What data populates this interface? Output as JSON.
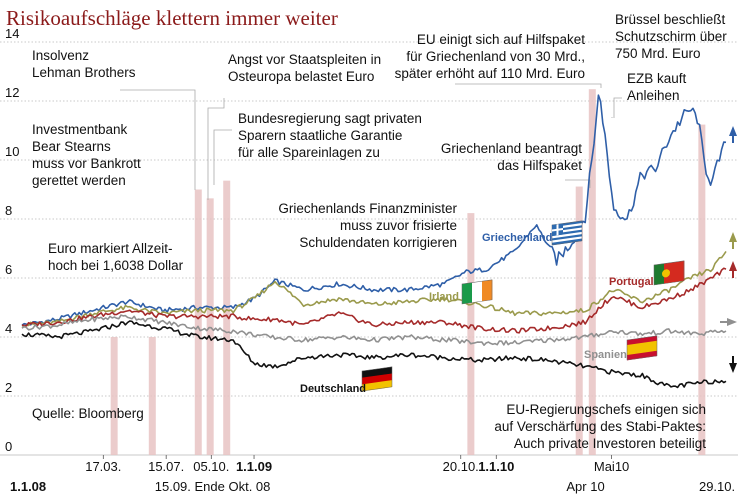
{
  "chart_data": {
    "type": "line",
    "title": "Risikoaufschläge klettern immer weiter",
    "source": "Quelle: Bloomberg",
    "ylim": [
      0,
      14
    ],
    "yticks": [
      0,
      2,
      4,
      6,
      8,
      10,
      12,
      14
    ],
    "grid": true,
    "x_ticks": [
      {
        "label": "17.03.",
        "t": 0.1155,
        "row": 1,
        "bold": false
      },
      {
        "label": "15.07.",
        "t": 0.2048,
        "row": 1,
        "bold": false
      },
      {
        "label": "05.10.",
        "t": 0.2689,
        "row": 1,
        "bold": false
      },
      {
        "label": "1.1.09",
        "t": 0.3296,
        "row": 1,
        "bold": true
      },
      {
        "label": "20.10.",
        "t": 0.6232,
        "row": 1,
        "bold": false
      },
      {
        "label": "1.1.10",
        "t": 0.6737,
        "row": 1,
        "bold": true
      },
      {
        "label": "Mai10",
        "t": 0.8375,
        "row": 1,
        "bold": false
      },
      {
        "label": "1.1.08",
        "t": 0.0,
        "row": 2,
        "bold": true
      },
      {
        "label": "15.09. Ende Okt. 08",
        "t": 0.2707,
        "row": 2,
        "bold": false
      },
      {
        "label": "Apr 10",
        "t": 0.8005,
        "row": 2,
        "bold": false
      },
      {
        "label": "29.10.",
        "t": 0.9873,
        "row": 2,
        "bold": false
      }
    ],
    "event_bands": [
      {
        "t": 0.1309,
        "y": 4.0
      },
      {
        "t": 0.1851,
        "y": 4.0
      },
      {
        "t": 0.2504,
        "y": 9.0
      },
      {
        "t": 0.2673,
        "y": 8.7
      },
      {
        "t": 0.2908,
        "y": 9.3
      },
      {
        "t": 0.6376,
        "y": 8.2
      },
      {
        "t": 0.7915,
        "y": 9.1
      },
      {
        "t": 0.8101,
        "y": 12.4
      },
      {
        "t": 0.9657,
        "y": 11.2
      }
    ],
    "annotations": [
      {
        "lines": [
          "Insolvenz",
          "Lehman Brothers"
        ]
      },
      {
        "lines": [
          "Angst vor Staatspleiten in",
          "Osteuropa belastet Euro"
        ]
      },
      {
        "lines": [
          "EU einigt sich auf Hilfspaket",
          "für Griechenland von 30 Mrd.,",
          "später erhöht auf 110 Mrd. Euro"
        ]
      },
      {
        "lines": [
          "Brüssel beschließt",
          "Schutzschirm über",
          "750 Mrd. Euro"
        ]
      },
      {
        "lines": [
          "EZB kauft",
          "Anleihen"
        ]
      },
      {
        "lines": [
          "Investmentbank",
          "Bear Stearns",
          "muss vor Bankrott",
          "gerettet werden"
        ]
      },
      {
        "lines": [
          "Bundesregierung sagt privaten",
          "Sparern staatliche Garantie",
          "für alle Spareinlagen zu"
        ]
      },
      {
        "lines": [
          "Griechenland beantragt",
          "das Hilfspaket"
        ]
      },
      {
        "lines": [
          "Griechenlands Finanzminister",
          "muss zuvor frisierte",
          "Schuldendaten korrigieren"
        ]
      },
      {
        "lines": [
          "Euro markiert Allzeit-",
          "hoch bei 1,6038 Dollar"
        ]
      },
      {
        "lines": [
          "EU-Regierungschefs einigen sich",
          "auf Verschärfung des Stabi-Paktes:",
          "Auch private Investoren beteiligt"
        ]
      }
    ],
    "series": [
      {
        "name": "Griechenland",
        "color": "#2f5fa8",
        "end_arrow": "up",
        "x": [
          0,
          0.05,
          0.1,
          0.15,
          0.2,
          0.25,
          0.3,
          0.33,
          0.36,
          0.4,
          0.45,
          0.5,
          0.55,
          0.6,
          0.63,
          0.66,
          0.7,
          0.73,
          0.76,
          0.78,
          0.8,
          0.81,
          0.82,
          0.84,
          0.86,
          0.88,
          0.9,
          0.92,
          0.94,
          0.95,
          0.96,
          0.97,
          0.98,
          0.99,
          1.0
        ],
        "values": [
          4.4,
          4.6,
          4.9,
          5.2,
          4.9,
          5.0,
          5.0,
          5.3,
          5.9,
          5.6,
          5.8,
          5.6,
          5.6,
          5.8,
          6.2,
          6.3,
          6.9,
          7.8,
          6.6,
          7.2,
          8.1,
          10.1,
          12.4,
          8.4,
          8.0,
          9.5,
          9.7,
          10.8,
          11.5,
          11.7,
          11.4,
          9.8,
          9.2,
          10.0,
          10.6
        ]
      },
      {
        "name": "Irland",
        "color": "#9a9a4c",
        "end_arrow": "up",
        "x": [
          0,
          0.05,
          0.1,
          0.15,
          0.2,
          0.25,
          0.3,
          0.33,
          0.36,
          0.4,
          0.45,
          0.5,
          0.55,
          0.6,
          0.65,
          0.7,
          0.75,
          0.8,
          0.84,
          0.88,
          0.92,
          0.95,
          0.98,
          1.0
        ],
        "values": [
          4.4,
          4.5,
          4.8,
          5.0,
          4.8,
          4.9,
          4.9,
          5.3,
          5.9,
          5.1,
          5.3,
          5.1,
          5.2,
          5.3,
          5.1,
          4.8,
          4.8,
          4.9,
          5.6,
          5.2,
          5.6,
          6.0,
          6.3,
          6.9
        ]
      },
      {
        "name": "Portugal",
        "color": "#a52a2a",
        "end_arrow": "up",
        "x": [
          0,
          0.05,
          0.1,
          0.15,
          0.2,
          0.25,
          0.3,
          0.33,
          0.36,
          0.4,
          0.45,
          0.5,
          0.55,
          0.6,
          0.65,
          0.7,
          0.75,
          0.8,
          0.82,
          0.84,
          0.88,
          0.92,
          0.95,
          0.98,
          1.0
        ],
        "values": [
          4.4,
          4.5,
          4.7,
          4.9,
          4.7,
          4.7,
          4.7,
          4.6,
          4.6,
          4.4,
          4.8,
          4.4,
          4.5,
          4.5,
          4.3,
          4.2,
          4.3,
          4.5,
          5.0,
          5.4,
          5.0,
          5.3,
          5.6,
          6.0,
          6.3
        ]
      },
      {
        "name": "Spanien",
        "color": "#909090",
        "end_arrow": "right",
        "x": [
          0,
          0.05,
          0.1,
          0.15,
          0.2,
          0.25,
          0.3,
          0.35,
          0.4,
          0.45,
          0.5,
          0.55,
          0.6,
          0.65,
          0.7,
          0.75,
          0.8,
          0.84,
          0.88,
          0.92,
          0.96,
          1.0
        ],
        "values": [
          4.3,
          4.4,
          4.6,
          4.7,
          4.5,
          4.3,
          4.2,
          4.0,
          3.9,
          4.0,
          3.9,
          4.0,
          3.9,
          3.8,
          3.8,
          3.9,
          4.0,
          4.2,
          4.1,
          4.2,
          4.1,
          4.2
        ]
      },
      {
        "name": "Deutschland",
        "color": "#111111",
        "end_arrow": "down",
        "x": [
          0,
          0.05,
          0.1,
          0.15,
          0.2,
          0.25,
          0.3,
          0.33,
          0.36,
          0.4,
          0.45,
          0.5,
          0.55,
          0.6,
          0.65,
          0.7,
          0.75,
          0.8,
          0.84,
          0.88,
          0.92,
          0.95,
          0.98,
          1.0
        ],
        "values": [
          4.1,
          4.0,
          4.2,
          4.5,
          4.3,
          4.0,
          3.9,
          3.1,
          3.0,
          3.3,
          3.4,
          3.3,
          3.4,
          3.3,
          3.2,
          3.3,
          3.2,
          3.0,
          2.8,
          2.7,
          2.3,
          2.4,
          2.5,
          2.5
        ]
      }
    ]
  }
}
